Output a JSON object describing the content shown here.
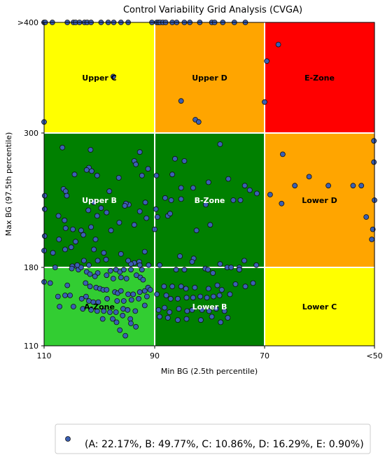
{
  "chart_data": {
    "type": "scatter",
    "title": "Control Variability Grid Analysis (CVGA)",
    "xlabel": "Min BG (2.5th percentile)",
    "ylabel": "Max BG (97.5th percentile)",
    "x_ticks": [
      "110",
      "90",
      "70",
      "<50"
    ],
    "y_ticks": [
      ">400",
      "300",
      "180",
      "110"
    ],
    "x_axis_note": "Min BG axis runs from 110 (left) to <50 (right)",
    "y_axis_note": "Max BG axis: 110 bottom, 180, 300, >400 top",
    "zones": [
      {
        "label": "Upper C",
        "color": "#ffff00"
      },
      {
        "label": "Upper D",
        "color": "#ffa500"
      },
      {
        "label": "E-Zone",
        "color": "#ff0000"
      },
      {
        "label": "Upper B",
        "color": "#008000"
      },
      {
        "label": "B-Zone",
        "color": "#008000"
      },
      {
        "label": "Lower D",
        "color": "#ffa500"
      },
      {
        "label": "A-Zone",
        "color": "#32cd32"
      },
      {
        "label": "Lower B",
        "color": "#008000"
      },
      {
        "label": "Lower C",
        "color": "#ffff00"
      }
    ],
    "marker_color": "#3a5fb4",
    "legend": {
      "label": "(A: 22.17%, B: 49.77%, C: 10.86%, D: 16.29%, E: 0.90%)",
      "placement": "bottom-center"
    },
    "grid": true,
    "points": [
      [
        110,
        400
      ],
      [
        109.8,
        400
      ],
      [
        108.5,
        400
      ],
      [
        105.8,
        400
      ],
      [
        104.7,
        400
      ],
      [
        104.3,
        400
      ],
      [
        103.6,
        400
      ],
      [
        102.7,
        400
      ],
      [
        102.2,
        400
      ],
      [
        101.5,
        400
      ],
      [
        99.7,
        400
      ],
      [
        98.4,
        400
      ],
      [
        97.4,
        400
      ],
      [
        96.1,
        400
      ],
      [
        94.8,
        400
      ],
      [
        90.5,
        400
      ],
      [
        89.6,
        400
      ],
      [
        89.3,
        400
      ],
      [
        89.0,
        400
      ],
      [
        88.5,
        400
      ],
      [
        88.0,
        400
      ],
      [
        86.8,
        400
      ],
      [
        86.0,
        400
      ],
      [
        84.6,
        400
      ],
      [
        83.6,
        400
      ],
      [
        81.8,
        400
      ],
      [
        79.6,
        400
      ],
      [
        79.1,
        400
      ],
      [
        77.6,
        400
      ],
      [
        75.5,
        400
      ],
      [
        73.5,
        400
      ],
      [
        67.5,
        380
      ],
      [
        69.6,
        365
      ],
      [
        97.5,
        351
      ],
      [
        85.2,
        329
      ],
      [
        70.0,
        328
      ],
      [
        82.6,
        312
      ],
      [
        82.0,
        310
      ],
      [
        110,
        310
      ],
      [
        78.1,
        290
      ],
      [
        106.7,
        287
      ],
      [
        101.6,
        285
      ],
      [
        92.7,
        283
      ],
      [
        86.3,
        277
      ],
      [
        84.6,
        275
      ],
      [
        93.7,
        275
      ],
      [
        93.4,
        272
      ],
      [
        101.9,
        269
      ],
      [
        91.2,
        268
      ],
      [
        101.4,
        266
      ],
      [
        100.4,
        262
      ],
      [
        102.3,
        267
      ],
      [
        104.5,
        263
      ],
      [
        89.7,
        262
      ],
      [
        86.8,
        263
      ],
      [
        92.3,
        262
      ],
      [
        96.5,
        260
      ],
      [
        76.6,
        259
      ],
      [
        80.2,
        256
      ],
      [
        83.0,
        251
      ],
      [
        85.2,
        251
      ],
      [
        73.6,
        253
      ],
      [
        71.4,
        246
      ],
      [
        72.7,
        249
      ],
      [
        98.2,
        248
      ],
      [
        106.5,
        250
      ],
      [
        106.1,
        248
      ],
      [
        105.9,
        244
      ],
      [
        109.9,
        244
      ],
      [
        101.0,
        238
      ],
      [
        88.1,
        242
      ],
      [
        87.0,
        240
      ],
      [
        85.2,
        241
      ],
      [
        91.7,
        238
      ],
      [
        94.7,
        236
      ],
      [
        95.2,
        237
      ],
      [
        80.7,
        236
      ],
      [
        74.4,
        240
      ],
      [
        75.7,
        240
      ],
      [
        95.4,
        235
      ],
      [
        89.8,
        232
      ],
      [
        92.7,
        230
      ],
      [
        99.7,
        233
      ],
      [
        102.0,
        231
      ],
      [
        98.7,
        229
      ],
      [
        109.9,
        232
      ],
      [
        107.4,
        226
      ],
      [
        106.3,
        222
      ],
      [
        100.4,
        226
      ],
      [
        87.6,
        226
      ],
      [
        87.2,
        228
      ],
      [
        91.5,
        224
      ],
      [
        89.5,
        225
      ],
      [
        96.4,
        220
      ],
      [
        93.7,
        218
      ],
      [
        101.5,
        216
      ],
      [
        106.1,
        215
      ],
      [
        104.8,
        214
      ],
      [
        103.3,
        213
      ],
      [
        79.9,
        218
      ],
      [
        90.0,
        214
      ],
      [
        82.4,
        213
      ],
      [
        97.9,
        213
      ],
      [
        109.9,
        208
      ],
      [
        102.9,
        209
      ],
      [
        100.7,
        205
      ],
      [
        107.3,
        205
      ],
      [
        104.3,
        203
      ],
      [
        105.1,
        198
      ],
      [
        106.2,
        196
      ],
      [
        110.0,
        195
      ],
      [
        108.4,
        193
      ],
      [
        101.0,
        196
      ],
      [
        99.2,
        193
      ],
      [
        96.1,
        192
      ],
      [
        91.8,
        194
      ],
      [
        98.8,
        187
      ],
      [
        102.8,
        186
      ],
      [
        100.3,
        186
      ],
      [
        82.9,
        188
      ],
      [
        85.4,
        190
      ],
      [
        83.2,
        185
      ],
      [
        93.7,
        184
      ],
      [
        92.8,
        185
      ],
      [
        89.1,
        182
      ],
      [
        91.1,
        182
      ],
      [
        80.8,
        179
      ],
      [
        78.1,
        183
      ],
      [
        76.8,
        180
      ],
      [
        76.1,
        180
      ],
      [
        74.6,
        180
      ],
      [
        73.7,
        186
      ],
      [
        71.5,
        182
      ],
      [
        104.9,
        181
      ],
      [
        104.1,
        181
      ],
      [
        103.8,
        178
      ],
      [
        103.3,
        180
      ],
      [
        104.0,
        182
      ],
      [
        101.9,
        182
      ],
      [
        100.3,
        175
      ],
      [
        98.0,
        177
      ],
      [
        96.3,
        176
      ],
      [
        95.6,
        178
      ],
      [
        94.3,
        178
      ],
      [
        92.3,
        178
      ],
      [
        92.7,
        182
      ],
      [
        94.3,
        183
      ],
      [
        94.8,
        186
      ],
      [
        97.0,
        178
      ],
      [
        86.1,
        178
      ],
      [
        84.6,
        178
      ],
      [
        80.3,
        178
      ],
      [
        79.4,
        175
      ],
      [
        74.6,
        178
      ],
      [
        66.7,
        281
      ],
      [
        61.9,
        261
      ],
      [
        58.4,
        253
      ],
      [
        53.9,
        253
      ],
      [
        52.4,
        253
      ],
      [
        50.1,
        293
      ],
      [
        50.1,
        274
      ],
      [
        50.3,
        214
      ],
      [
        51.5,
        225
      ],
      [
        50.5,
        205
      ],
      [
        50.0,
        240
      ],
      [
        64.5,
        253
      ],
      [
        66.9,
        237
      ],
      [
        69.0,
        245
      ],
      [
        108.0,
        180
      ],
      [
        105.0,
        179
      ],
      [
        102.3,
        176
      ],
      [
        101.7,
        174
      ],
      [
        100.8,
        172
      ],
      [
        98.7,
        173
      ],
      [
        97.5,
        170
      ],
      [
        96.1,
        171
      ],
      [
        95.1,
        170
      ],
      [
        93.3,
        173
      ],
      [
        92.6,
        171
      ],
      [
        92.1,
        169
      ],
      [
        110.0,
        167
      ],
      [
        108.9,
        166
      ],
      [
        105.8,
        164
      ],
      [
        102.5,
        166
      ],
      [
        101.7,
        163
      ],
      [
        100.6,
        162
      ],
      [
        99.9,
        161
      ],
      [
        99.3,
        160
      ],
      [
        98.7,
        160
      ],
      [
        97.2,
        158
      ],
      [
        96.7,
        157
      ],
      [
        96.1,
        159
      ],
      [
        94.8,
        156
      ],
      [
        93.9,
        156
      ],
      [
        92.7,
        158
      ],
      [
        91.8,
        159
      ],
      [
        91.2,
        162
      ],
      [
        90.8,
        160
      ],
      [
        88.3,
        163
      ],
      [
        86.8,
        163
      ],
      [
        85.2,
        163
      ],
      [
        84.3,
        161
      ],
      [
        82.7,
        162
      ],
      [
        80.2,
        161
      ],
      [
        78.6,
        164
      ],
      [
        77.8,
        160
      ],
      [
        75.3,
        165
      ],
      [
        73.5,
        163
      ],
      [
        72.1,
        166
      ],
      [
        107.5,
        154
      ],
      [
        106.2,
        155
      ],
      [
        105.3,
        155
      ],
      [
        103.2,
        152
      ],
      [
        102.4,
        154
      ],
      [
        101.9,
        150
      ],
      [
        101.1,
        149
      ],
      [
        100.2,
        149
      ],
      [
        98.6,
        152
      ],
      [
        96.8,
        150
      ],
      [
        95.6,
        150
      ],
      [
        94.2,
        151
      ],
      [
        92.9,
        152
      ],
      [
        91.4,
        154
      ],
      [
        89.6,
        156
      ],
      [
        87.9,
        155
      ],
      [
        87.1,
        152
      ],
      [
        85.8,
        152
      ],
      [
        84.2,
        153
      ],
      [
        83.0,
        153
      ],
      [
        81.7,
        154
      ],
      [
        80.5,
        153
      ],
      [
        79.3,
        154
      ],
      [
        78.2,
        155
      ],
      [
        76.3,
        156
      ],
      [
        107.2,
        145
      ],
      [
        104.7,
        145
      ],
      [
        103.0,
        143
      ],
      [
        101.5,
        142
      ],
      [
        100.4,
        141
      ],
      [
        99.2,
        141
      ],
      [
        98.1,
        140
      ],
      [
        97.0,
        140
      ],
      [
        95.7,
        143
      ],
      [
        94.9,
        142
      ],
      [
        93.5,
        141
      ],
      [
        91.8,
        146
      ],
      [
        89.3,
        142
      ],
      [
        88.2,
        144
      ],
      [
        87.3,
        140
      ],
      [
        85.6,
        143
      ],
      [
        84.1,
        141
      ],
      [
        83.2,
        142
      ],
      [
        81.4,
        142
      ],
      [
        80.1,
        141
      ],
      [
        78.8,
        143
      ],
      [
        77.3,
        141
      ],
      [
        95.8,
        137
      ],
      [
        94.4,
        134
      ],
      [
        96.9,
        131
      ],
      [
        89.1,
        136
      ],
      [
        87.6,
        135
      ],
      [
        85.8,
        133
      ],
      [
        84.2,
        134
      ],
      [
        81.6,
        133
      ],
      [
        79.6,
        136
      ],
      [
        78.0,
        131
      ],
      [
        76.7,
        135
      ],
      [
        93.4,
        127
      ],
      [
        96.3,
        124
      ],
      [
        95.3,
        119
      ],
      [
        94.3,
        130
      ],
      [
        97.6,
        134
      ],
      [
        99.4,
        134
      ]
    ]
  }
}
